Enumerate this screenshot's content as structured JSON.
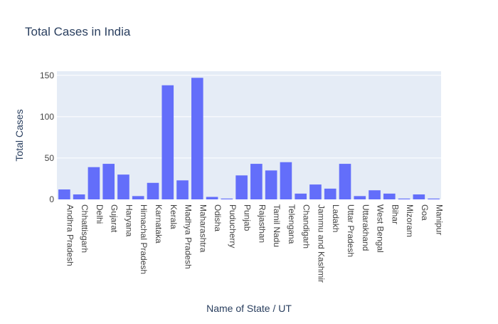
{
  "chart_data": {
    "type": "bar",
    "title": "Total Cases in India",
    "xlabel": "Name of State / UT",
    "ylabel": "Total Cases",
    "categories": [
      "Andhra Pradesh",
      "Chhattisgarh",
      "Delhi",
      "Gujarat",
      "Haryana",
      "Himachal Pradesh",
      "Karnataka",
      "Kerala",
      "Madhya Pradesh",
      "Maharashtra",
      "Odisha",
      "Puducherry",
      "Punjab",
      "Rajasthan",
      "Tamil Nadu",
      "Telengana",
      "Chandigarh",
      "Jammu and Kashmir",
      "Ladakh",
      "Uttar Pradesh",
      "Uttarakhand",
      "West Bengal",
      "Bihar",
      "Mizoram",
      "Goa",
      "Manipur"
    ],
    "values": [
      12,
      6,
      39,
      43,
      30,
      4,
      20,
      138,
      23,
      147,
      3,
      1,
      29,
      43,
      35,
      45,
      7,
      18,
      13,
      43,
      4,
      11,
      7,
      1,
      6,
      1
    ],
    "ylim": [
      0,
      155
    ],
    "yticks": [
      0,
      50,
      100,
      150
    ],
    "grid": true,
    "colors": {
      "bar": "#636efa",
      "plot_bg": "#e5ecf6",
      "grid": "#ffffff",
      "text": "#2a3f5f",
      "axis_text": "#444444"
    }
  }
}
